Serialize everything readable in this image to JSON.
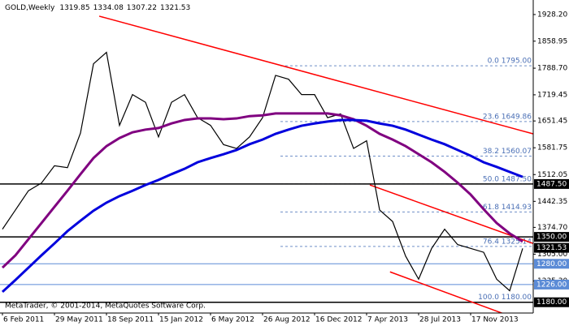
{
  "header": {
    "symbol": "GOLD,Weekly",
    "open": 1319.85,
    "high": 1334.08,
    "low": 1307.22,
    "close": 1321.53
  },
  "copyright": "MetaTrader, © 2001-2014, MetaQuotes Software Corp.",
  "chart_data": {
    "type": "line",
    "categories": [
      "6 Feb 2011",
      null,
      null,
      null,
      "29 May 2011",
      null,
      null,
      null,
      "18 Sep 2011",
      null,
      null,
      null,
      "15 Jan 2012",
      null,
      null,
      null,
      "6 May 2012",
      null,
      null,
      null,
      "26 Aug 2012",
      null,
      null,
      null,
      "16 Dec 2012",
      null,
      null,
      null,
      "7 Apr 2013",
      null,
      null,
      null,
      "28 Jul 2013",
      null,
      null,
      null,
      "17 Nov 2013",
      null,
      null,
      null,
      null
    ],
    "series": [
      {
        "name": "GOLD",
        "color": "#000000",
        "values": [
          1370,
          1420,
          1470,
          1490,
          1535,
          1530,
          1620,
          1800,
          1830,
          1640,
          1720,
          1700,
          1610,
          1700,
          1720,
          1660,
          1640,
          1590,
          1580,
          1610,
          1660,
          1770,
          1760,
          1720,
          1720,
          1660,
          1670,
          1580,
          1600,
          1420,
          1390,
          1300,
          1240,
          1320,
          1370,
          1330,
          1320,
          1310,
          1240,
          1210,
          1320
        ]
      },
      {
        "name": "MA 50",
        "color": "#800080",
        "values": [
          1270,
          1302,
          1344,
          1386,
          1428,
          1470,
          1513,
          1555,
          1586,
          1607,
          1622,
          1629,
          1633,
          1645,
          1654,
          1658,
          1658,
          1656,
          1658,
          1664,
          1666,
          1671,
          1671,
          1671,
          1671,
          1671,
          1666,
          1656,
          1639,
          1618,
          1603,
          1586,
          1565,
          1544,
          1519,
          1491,
          1460,
          1422,
          1386,
          1359,
          1338
        ]
      },
      {
        "name": "MA 100",
        "color": "#0000dd",
        "values": [
          1207,
          1238,
          1270,
          1302,
          1333,
          1365,
          1392,
          1418,
          1439,
          1456,
          1470,
          1485,
          1498,
          1513,
          1527,
          1544,
          1555,
          1565,
          1576,
          1591,
          1603,
          1618,
          1629,
          1639,
          1645,
          1650,
          1654,
          1654,
          1652,
          1645,
          1639,
          1629,
          1616,
          1603,
          1591,
          1576,
          1561,
          1544,
          1532,
          1519,
          1506
        ]
      }
    ],
    "ylim": [
      1152,
      1966
    ],
    "yticks": [
      {
        "value": 1928.2,
        "label": "1928.20"
      },
      1858.95,
      {
        "value": 1788.7,
        "label": "1788.70"
      },
      1719.45,
      1651.45,
      1581.75,
      1512.05,
      1442.35,
      {
        "value": 1374.7,
        "label": "1374.70"
      },
      {
        "value": 1305,
        "label": "1305.00"
      },
      {
        "value": 1235.3,
        "label": "1235.30"
      }
    ],
    "hlines": [
      {
        "value": 1487.5,
        "label": "1487.50",
        "color": "#000000",
        "line": true
      },
      {
        "value": 1350,
        "label": "1350.00",
        "color": "#000000",
        "line": true
      },
      {
        "value": 1321.53,
        "color": "#000000",
        "line": false
      },
      {
        "value": 1280,
        "label": "1280.00",
        "color": "#5b8bd6",
        "line": true
      },
      {
        "value": 1226,
        "label": "1226.00",
        "color": "#5b8bd6",
        "line": true
      },
      {
        "value": 1180,
        "label": "1180.00",
        "color": "#000000",
        "line": true
      }
    ],
    "fibo": [
      {
        "value": 1795,
        "label": "0.0 1795.00"
      },
      {
        "value": 1649.86,
        "label": "23.6 1649.86"
      },
      {
        "value": 1560.07,
        "label": "38.2 1560.07"
      },
      {
        "value": 1487.5,
        "label": "50.0 1487.50"
      },
      {
        "value": 1414.93,
        "label": "61.8 1414.93"
      },
      {
        "value": 1325.14,
        "label": "76.4 1325.14"
      },
      {
        "value": 1180,
        "label": "100.0 1180.00"
      }
    ],
    "trendlines": [
      {
        "color": "#ff0000",
        "from": [
          7.44,
          1924
        ],
        "to": [
          40.8,
          1618
        ]
      },
      {
        "color": "#ff0000",
        "from": [
          28.25,
          1485
        ],
        "to": [
          40.8,
          1333
        ]
      },
      {
        "color": "#ff0000",
        "from": [
          29.8,
          1259
        ],
        "to": [
          40.8,
          1122
        ]
      }
    ]
  }
}
